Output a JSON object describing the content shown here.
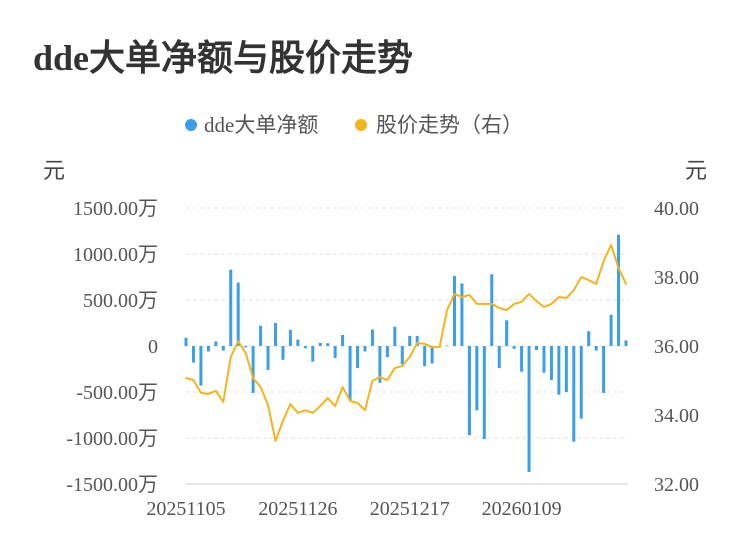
{
  "chart_data": {
    "type": "bar",
    "title": "dde大单净额与股价走势",
    "legend_position": "top-center",
    "grid": true,
    "x_tick_labels": [
      "20251105",
      "20251126",
      "20251217",
      "20260109"
    ],
    "y_left": {
      "unit": "元",
      "range": [
        -1500,
        1500
      ],
      "ticks": [
        {
          "value": 1500,
          "label": "1500.00万"
        },
        {
          "value": 1000,
          "label": "1000.00万"
        },
        {
          "value": 500,
          "label": "500.00万"
        },
        {
          "value": 0,
          "label": "0"
        },
        {
          "value": -500,
          "label": "-500.00万"
        },
        {
          "value": -1000,
          "label": "-1000.00万"
        },
        {
          "value": -1500,
          "label": "-1500.00万"
        }
      ]
    },
    "y_right": {
      "unit": "元",
      "range": [
        32,
        40
      ],
      "ticks": [
        {
          "value": 40,
          "label": "40.00"
        },
        {
          "value": 38,
          "label": "38.00"
        },
        {
          "value": 36,
          "label": "36.00"
        },
        {
          "value": 34,
          "label": "34.00"
        },
        {
          "value": 32,
          "label": "32.00"
        }
      ]
    },
    "series": [
      {
        "name": "dde大单净额",
        "type": "bar",
        "axis": "left",
        "color": "#3a9fe6",
        "values": [
          90,
          -180,
          -430,
          -60,
          50,
          -50,
          830,
          690,
          -15,
          -510,
          220,
          -260,
          250,
          -150,
          175,
          70,
          -25,
          -170,
          35,
          30,
          -130,
          120,
          -590,
          -240,
          -60,
          180,
          -400,
          -120,
          210,
          -200,
          110,
          110,
          -220,
          -190,
          -5,
          5,
          760,
          680,
          -970,
          -700,
          -1010,
          780,
          -240,
          280,
          -30,
          -280,
          -1370,
          -45,
          -290,
          -370,
          -530,
          -500,
          -1040,
          -790,
          160,
          -50,
          -510,
          340,
          1210,
          60
        ]
      },
      {
        "name": "股价走势（右）",
        "type": "line",
        "axis": "right",
        "color": "#f5b41c",
        "values": [
          35.07,
          35.01,
          34.64,
          34.61,
          34.7,
          34.38,
          35.68,
          36.14,
          35.8,
          35.07,
          34.81,
          34.29,
          33.25,
          33.83,
          34.32,
          34.06,
          34.14,
          34.06,
          34.26,
          34.49,
          34.26,
          34.81,
          34.41,
          34.35,
          34.14,
          34.99,
          35.1,
          35.01,
          35.36,
          35.42,
          35.68,
          36.09,
          36.06,
          35.97,
          35.97,
          37.04,
          37.51,
          37.42,
          37.48,
          37.22,
          37.22,
          37.22,
          37.1,
          37.04,
          37.22,
          37.28,
          37.51,
          37.3,
          37.13,
          37.22,
          37.42,
          37.39,
          37.62,
          38.0,
          37.91,
          37.8,
          38.46,
          38.93,
          38.26,
          37.8
        ]
      }
    ]
  }
}
